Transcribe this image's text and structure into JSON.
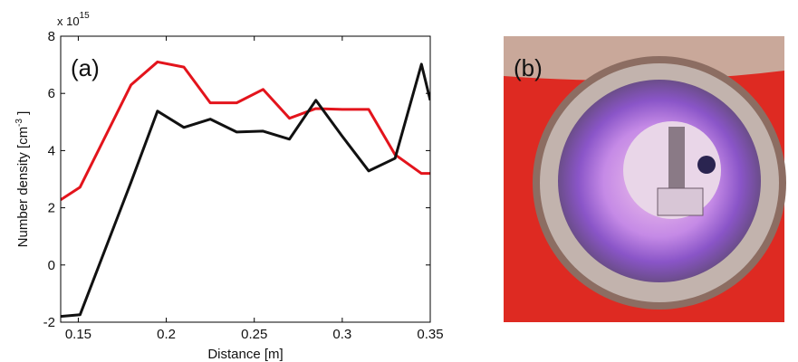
{
  "chart_data": {
    "type": "line",
    "annotation": "(a)",
    "axis_multiplier": [
      "x 10",
      "15"
    ],
    "xlabel": "Distance [m]",
    "ylabel_parts": [
      "Number density [cm",
      "-3",
      " ]"
    ],
    "xlim": [
      0.14,
      0.35
    ],
    "xticks": [
      0.15,
      0.2,
      0.25,
      0.3,
      0.35
    ],
    "ylim": [
      -2,
      8
    ],
    "yticks": [
      -2,
      0,
      2,
      4,
      6,
      8
    ],
    "grid": false,
    "series": [
      {
        "color": "#e3141c",
        "x": [
          0.14,
          0.151,
          0.18,
          0.195,
          0.21,
          0.225,
          0.24,
          0.255,
          0.27,
          0.285,
          0.3,
          0.315,
          0.33,
          0.345,
          0.35
        ],
        "values": [
          2.28,
          2.72,
          6.3,
          7.1,
          6.92,
          5.67,
          5.67,
          6.14,
          5.13,
          5.47,
          5.44,
          5.44,
          3.86,
          3.2,
          3.2
        ]
      },
      {
        "color": "#111111",
        "x": [
          0.14,
          0.151,
          0.18,
          0.195,
          0.21,
          0.225,
          0.24,
          0.255,
          0.27,
          0.285,
          0.3,
          0.315,
          0.33,
          0.345,
          0.35
        ],
        "values": [
          -1.8,
          -1.74,
          2.9,
          5.38,
          4.81,
          5.1,
          4.65,
          4.68,
          4.4,
          5.76,
          4.5,
          3.29,
          3.73,
          7.02,
          5.76
        ]
      }
    ]
  },
  "photo": {
    "label": "(b)"
  }
}
